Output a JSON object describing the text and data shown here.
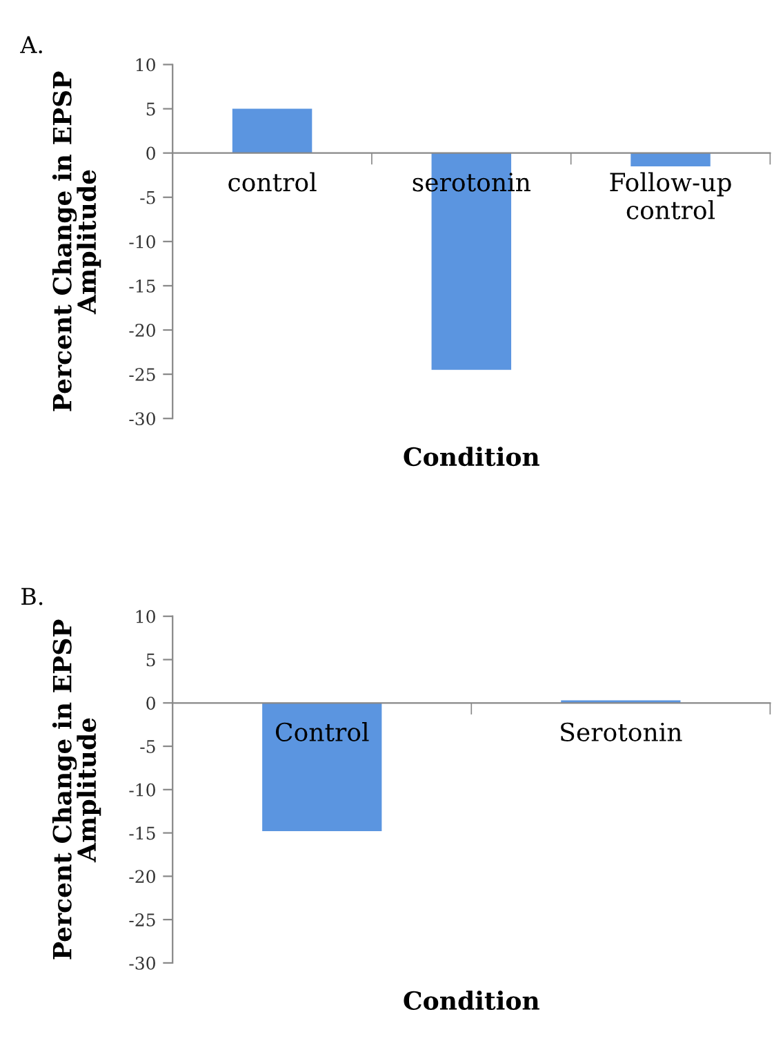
{
  "chart_data": [
    {
      "type": "bar",
      "title": "A.",
      "xlabel": "Condition",
      "ylabel": "Percent Change in EPSP\nAmplitude",
      "categories": [
        "control",
        "serotonin",
        "Follow-up\ncontrol"
      ],
      "values": [
        5,
        -24.5,
        -1.5
      ],
      "color": "#5b95e0",
      "ylim": [
        -30,
        10
      ],
      "yticks": [
        -30,
        -25,
        -20,
        -15,
        -10,
        -5,
        0,
        5,
        10
      ],
      "grid": false
    },
    {
      "type": "bar",
      "title": "B.",
      "xlabel": "Condition",
      "ylabel": "Percent Change in EPSP\nAmplitude",
      "categories": [
        "Control",
        "Serotonin"
      ],
      "values": [
        -14.8,
        0.3
      ],
      "color": "#5b95e0",
      "ylim": [
        -30,
        10
      ],
      "yticks": [
        -30,
        -25,
        -20,
        -15,
        -10,
        -5,
        0,
        5,
        10
      ],
      "grid": false
    }
  ]
}
